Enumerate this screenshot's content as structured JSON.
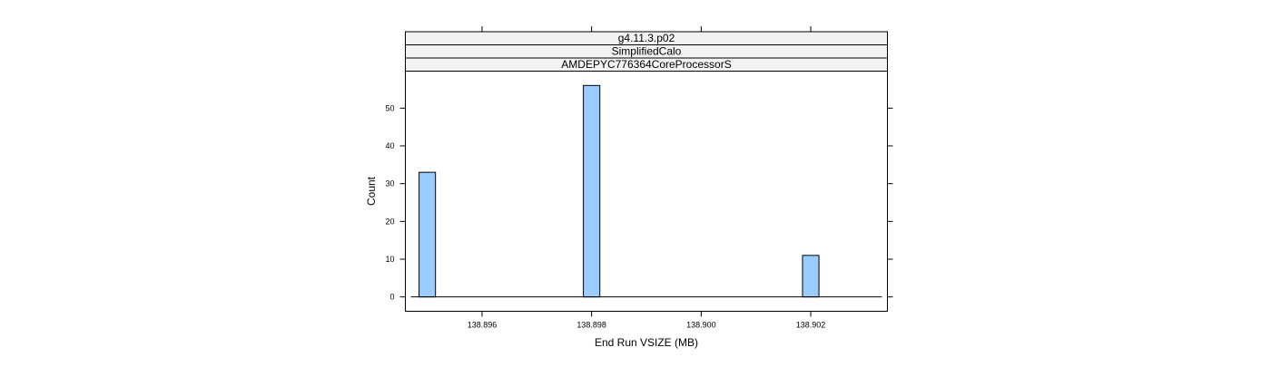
{
  "chart_data": {
    "type": "bar",
    "strips": [
      "g4.11.3.p02",
      "SimplifiedCalo",
      "AMDEPYC776364CoreProcessorS"
    ],
    "xlabel": "End Run VSIZE (MB)",
    "ylabel": "Count",
    "xlim": [
      138.8946,
      138.9034
    ],
    "ylim": [
      -3.8,
      59.8
    ],
    "x_ticks": [
      138.896,
      138.898,
      138.9,
      138.902
    ],
    "x_tick_labels": [
      "138.896",
      "138.898",
      "138.900",
      "138.902"
    ],
    "y_ticks": [
      0,
      10,
      20,
      30,
      40,
      50
    ],
    "y_tick_labels": [
      "0",
      "10",
      "20",
      "30",
      "40",
      "50"
    ],
    "baseline_range": [
      138.8947,
      138.9033
    ],
    "bin_width": 0.0001,
    "bars": [
      {
        "x": 138.895,
        "count": 33
      },
      {
        "x": 138.898,
        "count": 56
      },
      {
        "x": 138.902,
        "count": 11
      }
    ],
    "bar_fill": "#99ccff",
    "grid": false,
    "legend": "none"
  }
}
